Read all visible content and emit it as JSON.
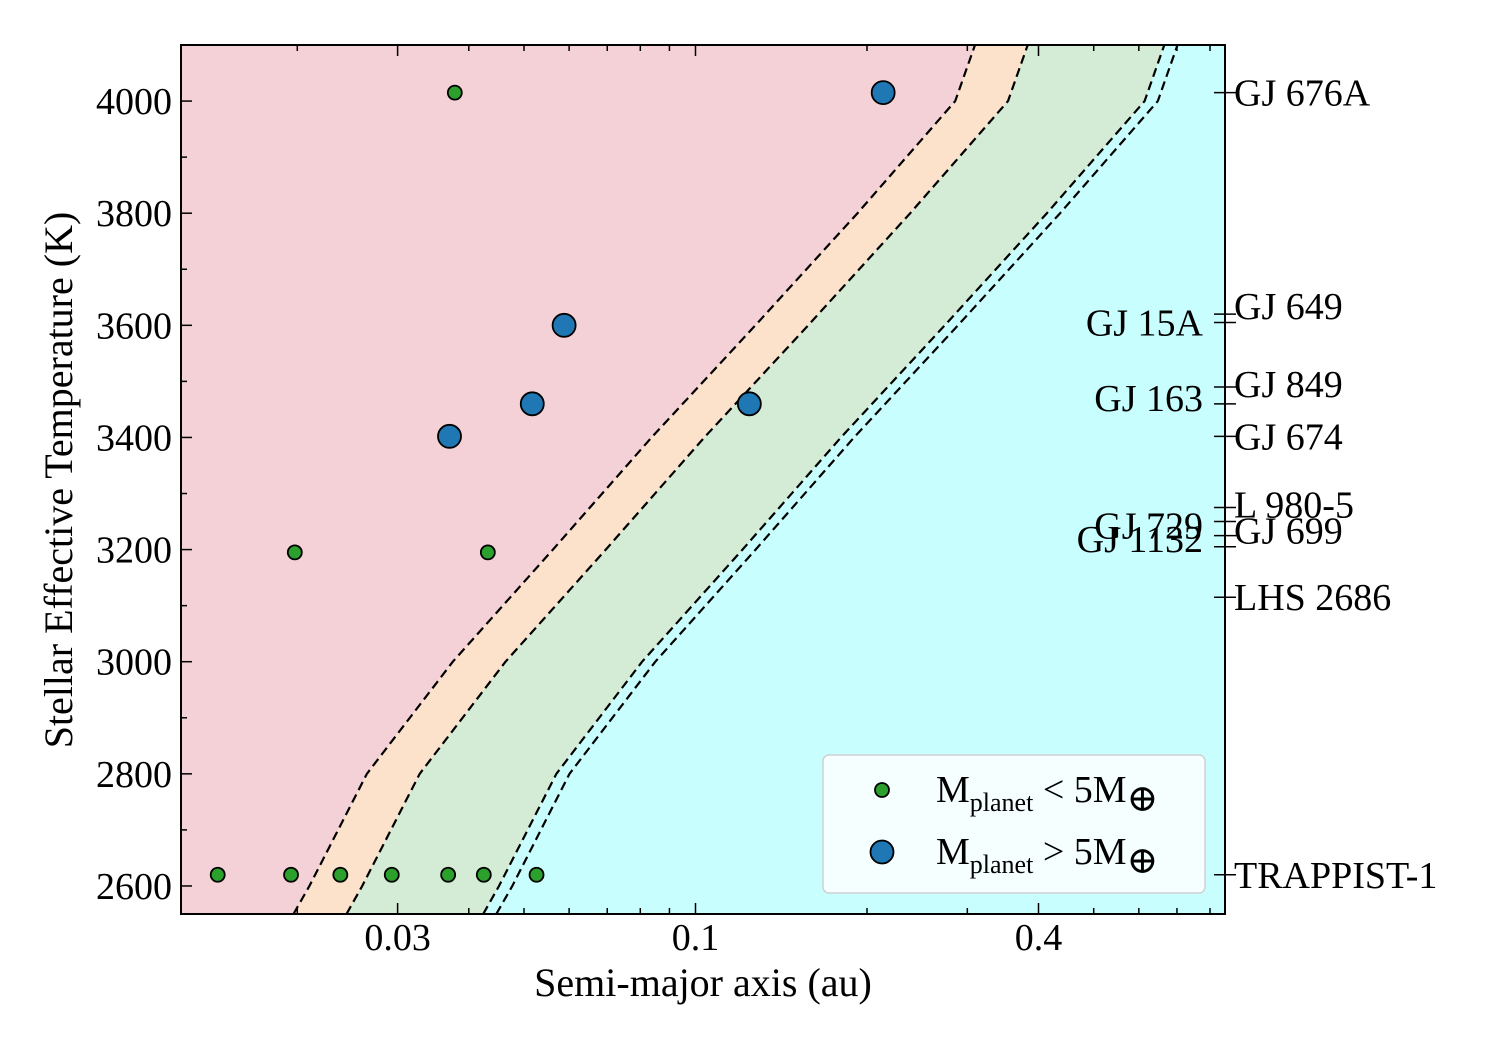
{
  "chart_data": {
    "type": "scatter",
    "xlabel": "Semi-major axis (au)",
    "ylabel": "Stellar Effective Temperature (K)",
    "x_scale": "log",
    "xlim": [
      0.0125,
      0.85
    ],
    "ylim": [
      2550,
      4100
    ],
    "x_ticks": [
      {
        "value": 0.03,
        "label": "0.03"
      },
      {
        "value": 0.1,
        "label": "0.1"
      },
      {
        "value": 0.4,
        "label": "0.4"
      }
    ],
    "y_ticks": [
      {
        "value": 2600,
        "label": "2600"
      },
      {
        "value": 2800,
        "label": "2800"
      },
      {
        "value": 3000,
        "label": "3000"
      },
      {
        "value": 3200,
        "label": "3200"
      },
      {
        "value": 3400,
        "label": "3400"
      },
      {
        "value": 3600,
        "label": "3600"
      },
      {
        "value": 3800,
        "label": "3800"
      },
      {
        "value": 4000,
        "label": "4000"
      }
    ],
    "grid": false,
    "legend_position": "bottom-right",
    "legend": [
      {
        "series": "small",
        "main": "M",
        "sub": "planet",
        "rest": " < 5M",
        "symbol": "⊕"
      },
      {
        "series": "large",
        "main": "M",
        "sub": "planet",
        "rest": " > 5M",
        "symbol": "⊕"
      }
    ],
    "series": [
      {
        "id": "small",
        "color": "#2ca02c",
        "points": [
          {
            "x": 0.0145,
            "y": 2620
          },
          {
            "x": 0.0195,
            "y": 2620
          },
          {
            "x": 0.0238,
            "y": 2620
          },
          {
            "x": 0.0293,
            "y": 2620
          },
          {
            "x": 0.0368,
            "y": 2620
          },
          {
            "x": 0.0425,
            "y": 2620
          },
          {
            "x": 0.0526,
            "y": 2620
          },
          {
            "x": 0.0198,
            "y": 3195
          },
          {
            "x": 0.0432,
            "y": 3195
          },
          {
            "x": 0.0378,
            "y": 4015
          }
        ]
      },
      {
        "id": "large",
        "color": "#1f77b4",
        "points": [
          {
            "x": 0.037,
            "y": 3402
          },
          {
            "x": 0.0517,
            "y": 3460
          },
          {
            "x": 0.0588,
            "y": 3600
          },
          {
            "x": 0.1243,
            "y": 3460
          },
          {
            "x": 0.2135,
            "y": 4015
          }
        ]
      }
    ],
    "regions": [
      {
        "name": "hot",
        "color": "#f4d1d6"
      },
      {
        "name": "warm",
        "color": "#fce1cb"
      },
      {
        "name": "temperate",
        "color": "#d4ebd5"
      },
      {
        "name": "cold",
        "color": "#c9fefe"
      }
    ],
    "boundaries": [
      {
        "points": [
          [
            0.0197,
            2550
          ],
          [
            0.021,
            2600
          ],
          [
            0.0265,
            2800
          ],
          [
            0.0375,
            3000
          ],
          [
            0.0562,
            3200
          ],
          [
            0.0837,
            3400
          ],
          [
            0.1274,
            3600
          ],
          [
            0.1925,
            3800
          ],
          [
            0.2857,
            4000
          ],
          [
            0.3094,
            4100
          ]
        ]
      },
      {
        "points": [
          [
            0.0244,
            2550
          ],
          [
            0.026,
            2600
          ],
          [
            0.0328,
            2800
          ],
          [
            0.0464,
            3000
          ],
          [
            0.0696,
            3200
          ],
          [
            0.1036,
            3400
          ],
          [
            0.1577,
            3600
          ],
          [
            0.2382,
            3800
          ],
          [
            0.3536,
            4000
          ],
          [
            0.3829,
            4100
          ]
        ]
      },
      {
        "points": [
          [
            0.0424,
            2550
          ],
          [
            0.0452,
            2600
          ],
          [
            0.057,
            2800
          ],
          [
            0.0806,
            3000
          ],
          [
            0.1209,
            3200
          ],
          [
            0.18,
            3400
          ],
          [
            0.2739,
            3600
          ],
          [
            0.4138,
            3800
          ],
          [
            0.6143,
            4000
          ],
          [
            0.6651,
            4100
          ]
        ]
      },
      {
        "points": [
          [
            0.0447,
            2550
          ],
          [
            0.0477,
            2600
          ],
          [
            0.0601,
            2800
          ],
          [
            0.085,
            3000
          ],
          [
            0.1275,
            3200
          ],
          [
            0.1898,
            3400
          ],
          [
            0.2889,
            3600
          ],
          [
            0.4365,
            3800
          ],
          [
            0.6479,
            4000
          ],
          [
            0.7016,
            4100
          ]
        ]
      }
    ],
    "star_labels": [
      {
        "name": "GJ 676A",
        "y": 4015,
        "side": "right",
        "dy": 0
      },
      {
        "name": "GJ 649",
        "y": 3620,
        "side": "right",
        "dy": -8
      },
      {
        "name": "GJ 15A",
        "y": 3605,
        "side": "left",
        "dy": 0
      },
      {
        "name": "GJ 849",
        "y": 3490,
        "side": "right",
        "dy": -3
      },
      {
        "name": "GJ 163",
        "y": 3460,
        "side": "left",
        "dy": -6
      },
      {
        "name": "GJ 674",
        "y": 3402,
        "side": "right",
        "dy": 0
      },
      {
        "name": "L 980-5",
        "y": 3275,
        "side": "right",
        "dy": -3
      },
      {
        "name": "GJ 729",
        "y": 3250,
        "side": "left",
        "dy": 4
      },
      {
        "name": "GJ 699",
        "y": 3225,
        "side": "right",
        "dy": -5
      },
      {
        "name": "GJ 1132",
        "y": 3205,
        "side": "left",
        "dy": -8
      },
      {
        "name": "LHS 2686",
        "y": 3115,
        "side": "right",
        "dy": 0
      },
      {
        "name": "TRAPPIST-1",
        "y": 2620,
        "side": "right",
        "dy": 0
      }
    ]
  }
}
